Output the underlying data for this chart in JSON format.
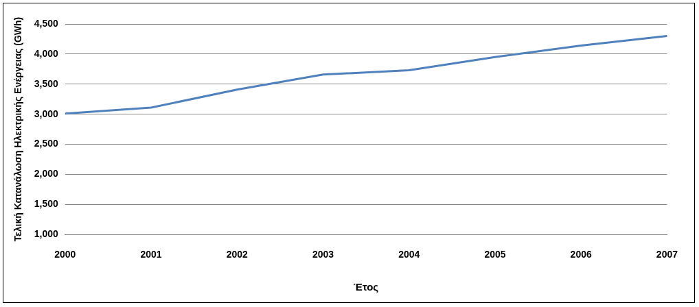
{
  "chart_data": {
    "type": "line",
    "xlabel": "Έτος",
    "ylabel": "Τελική Κατανάλωση Ηλεκτρικής Ενέργειας (GWh)",
    "categories": [
      "2000",
      "2001",
      "2002",
      "2003",
      "2004",
      "2005",
      "2006",
      "2007"
    ],
    "series": [
      {
        "color": "#4f81bd",
        "values": [
          3010,
          3110,
          3410,
          3660,
          3730,
          3950,
          4140,
          4300
        ]
      }
    ],
    "ylim": [
      1000,
      4500
    ],
    "yticks": [
      {
        "value": 1000,
        "label": "1,000"
      },
      {
        "value": 1500,
        "label": "1,500"
      },
      {
        "value": 2000,
        "label": "2,000"
      },
      {
        "value": 2500,
        "label": "2,500"
      },
      {
        "value": 3000,
        "label": "3,000"
      },
      {
        "value": 3500,
        "label": "3,500"
      },
      {
        "value": 4000,
        "label": "4,000"
      },
      {
        "value": 4500,
        "label": "4,500"
      }
    ],
    "grid": "y",
    "legend": false,
    "marker": "none",
    "line_style": "solid"
  }
}
